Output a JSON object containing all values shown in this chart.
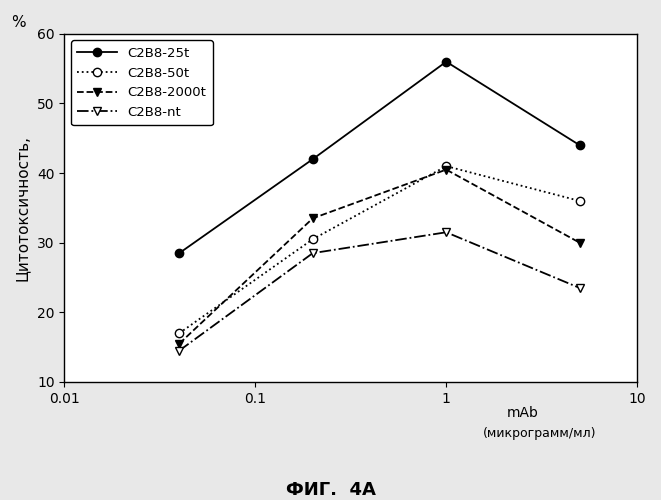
{
  "title": "ФИГ.  4А",
  "ylabel": "Цитотоксичность,",
  "ylabel_top": "%",
  "xlim": [
    0.01,
    10
  ],
  "ylim": [
    10,
    60
  ],
  "yticks": [
    10,
    20,
    30,
    40,
    50,
    60
  ],
  "xticks": [
    0.01,
    0.1,
    1,
    10
  ],
  "xtick_labels": [
    "0.01",
    "0.1",
    "1",
    "10"
  ],
  "series": [
    {
      "label": "C2B8-25t",
      "x": [
        0.04,
        0.2,
        1.0,
        5.0
      ],
      "y": [
        28.5,
        42.0,
        56.0,
        44.0
      ],
      "linestyle": "-",
      "marker": "o",
      "marker_fill": "black",
      "color": "black"
    },
    {
      "label": "C2B8-50t",
      "x": [
        0.04,
        0.2,
        1.0,
        5.0
      ],
      "y": [
        17.0,
        30.5,
        41.0,
        36.0
      ],
      "linestyle": ":",
      "marker": "o",
      "marker_fill": "white",
      "color": "black"
    },
    {
      "label": "C2B8-2000t",
      "x": [
        0.04,
        0.2,
        1.0,
        5.0
      ],
      "y": [
        15.5,
        33.5,
        40.5,
        30.0
      ],
      "linestyle": "--",
      "marker": "v",
      "marker_fill": "black",
      "color": "black"
    },
    {
      "label": "C2B8-nt",
      "x": [
        0.04,
        0.2,
        1.0,
        5.0
      ],
      "y": [
        14.5,
        28.5,
        31.5,
        23.5
      ],
      "linestyle": "-.",
      "marker": "v",
      "marker_fill": "white",
      "color": "black"
    }
  ],
  "background_color": "#e8e8e8",
  "plot_bg_color": "#ffffff"
}
